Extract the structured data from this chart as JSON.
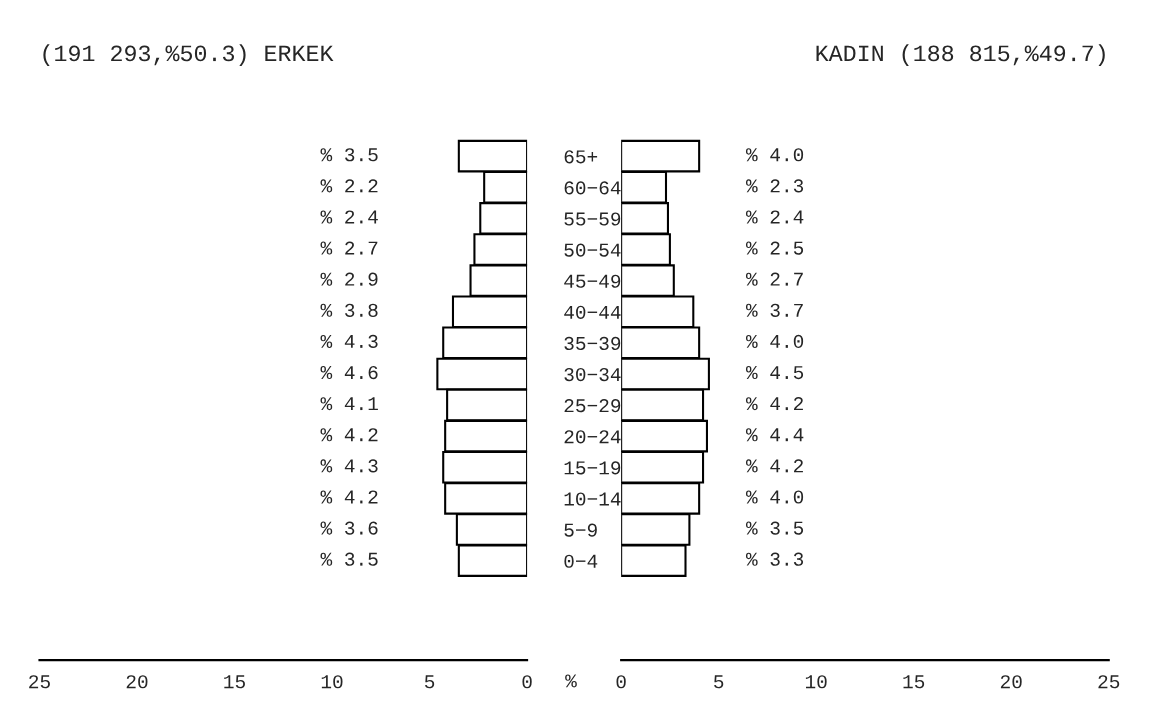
{
  "chart_data": [
    {
      "type": "bar",
      "orientation": "horizontal",
      "title": "(191 293,%50.3) ERKEK",
      "xlabel": "%",
      "categories": [
        "65+",
        "60−64",
        "55−59",
        "50−54",
        "45−49",
        "40−44",
        "35−39",
        "30−34",
        "25−29",
        "20−24",
        "15−19",
        "10−14",
        "5−9",
        "0−4"
      ],
      "values": [
        3.5,
        2.2,
        2.4,
        2.7,
        2.9,
        3.8,
        4.3,
        4.6,
        4.1,
        4.2,
        4.3,
        4.2,
        3.6,
        3.5
      ],
      "value_labels": [
        "% 3.5",
        "% 2.2",
        "% 2.4",
        "% 2.7",
        "% 2.9",
        "% 3.8",
        "% 4.3",
        "% 4.6",
        "% 4.1",
        "% 4.2",
        "% 4.3",
        "% 4.2",
        "% 3.6",
        "% 3.5"
      ],
      "color": "#ffffff",
      "xlim": [
        25,
        0
      ],
      "xticks": [
        25,
        20,
        15,
        10,
        5,
        0
      ],
      "grid": false,
      "legend": false
    },
    {
      "type": "bar",
      "orientation": "horizontal",
      "title": "KADIN (188 815,%49.7)",
      "values": [
        4.0,
        2.3,
        2.4,
        2.5,
        2.7,
        3.7,
        4.0,
        4.5,
        4.2,
        4.4,
        4.2,
        4.0,
        3.5,
        3.3
      ],
      "value_labels": [
        "% 4.0",
        "% 2.3",
        "% 2.4",
        "% 2.5",
        "% 2.7",
        "% 3.7",
        "% 4.0",
        "% 4.5",
        "% 4.2",
        "% 4.4",
        "% 4.2",
        "% 4.0",
        "% 3.5",
        "% 3.3"
      ],
      "color": "#ffffff",
      "xlim": [
        0,
        25
      ],
      "xticks": [
        0,
        5,
        10,
        15,
        20,
        25
      ],
      "tick_labels": "x",
      "grid": false,
      "legend": false
    }
  ]
}
